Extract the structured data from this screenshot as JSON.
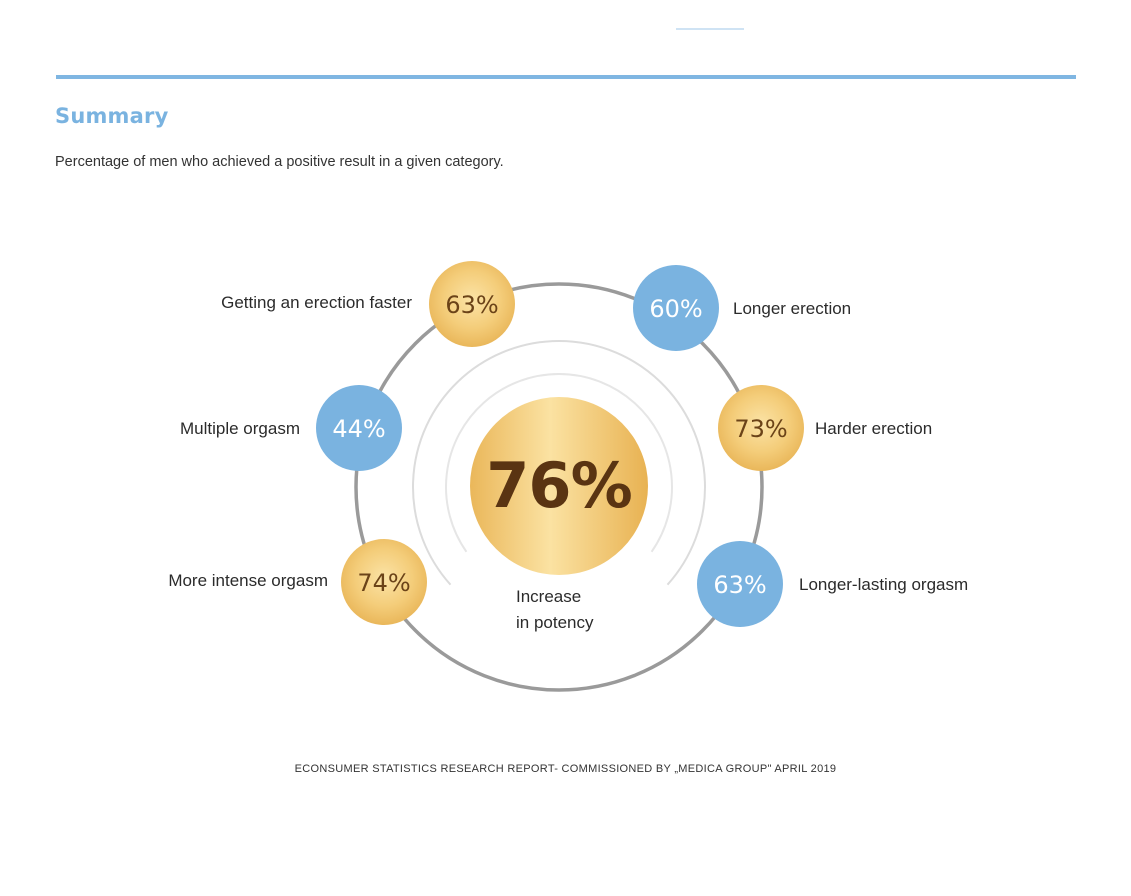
{
  "header": {
    "title": "Summary",
    "subtitle": "Percentage of men who achieved a positive result in a given category."
  },
  "colors": {
    "accent_blue": "#7ab3e0",
    "gold_light": "#f8d58a",
    "gold_dark": "#e6b04f",
    "center_text": "#5a3412",
    "ring_gray": "#9a9a9a"
  },
  "chart_data": {
    "type": "bubble-ring",
    "title": "Summary",
    "subtitle": "Percentage of men who achieved a positive result in a given category.",
    "center": {
      "value": 76,
      "display": "76%",
      "label_line1": "Increase",
      "label_line2": "in potency"
    },
    "categories": [
      "Getting an erection faster",
      "Longer erection",
      "Multiple orgasm",
      "Harder erection",
      "More intense orgasm",
      "Longer-lasting orgasm"
    ],
    "values": [
      63,
      60,
      44,
      73,
      74,
      63
    ],
    "display_values": [
      "63%",
      "60%",
      "44%",
      "73%",
      "74%",
      "63%"
    ],
    "bubble_colors": [
      "gold",
      "blue",
      "blue",
      "gold",
      "gold",
      "blue"
    ]
  },
  "footer": {
    "note": "ECONSUMER STATISTICS RESEARCH REPORT- COMMISSIONED BY „MEDICA GROUP\" APRIL 2019"
  }
}
